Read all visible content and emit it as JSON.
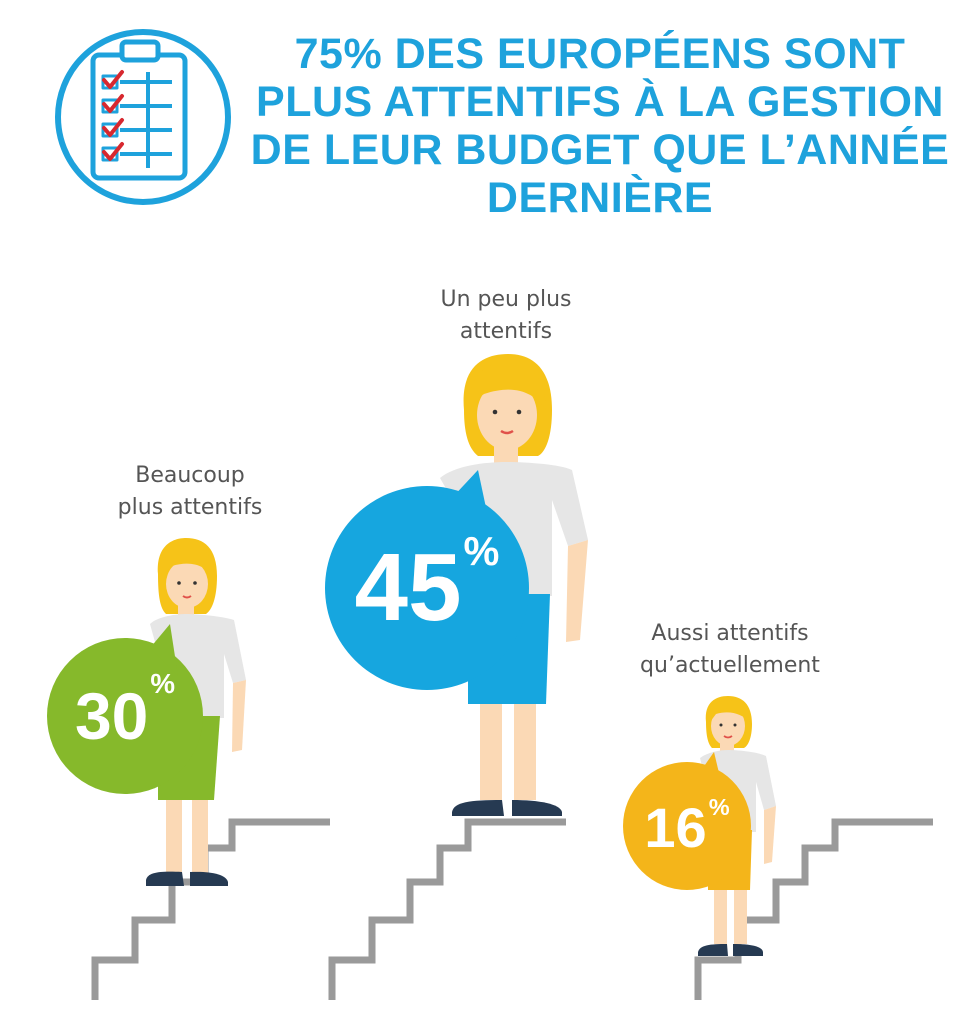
{
  "title_lines": [
    "75% DES EUROPÉENS SONT",
    "PLUS ATTENTIFS À LA GESTION",
    "DE LEUR BUDGET QUE L’ANNÉE",
    "DERNIÈRE"
  ],
  "colors": {
    "title": "#1ea2dc",
    "icon_blue": "#1ea2dc",
    "check_red": "#d7282f",
    "green": "#86b92b",
    "blue": "#16a6df",
    "yellow": "#f4b51a",
    "hair": "#f6c318",
    "skin": "#fbd9b5",
    "shirt": "#e6e6e6",
    "shoe": "#263a52",
    "stairs": "#9a9a9a"
  },
  "icon": "clipboard-checklist-icon",
  "groups": [
    {
      "label_lines": [
        "Beaucoup",
        "plus attentifs"
      ],
      "value": "30",
      "sign": "%",
      "color": "green"
    },
    {
      "label_lines": [
        "Un peu plus",
        "attentifs"
      ],
      "value": "45",
      "sign": "%",
      "color": "blue"
    },
    {
      "label_lines": [
        "Aussi attentifs",
        "qu’actuellement"
      ],
      "value": "16",
      "sign": "%",
      "color": "yellow"
    }
  ]
}
